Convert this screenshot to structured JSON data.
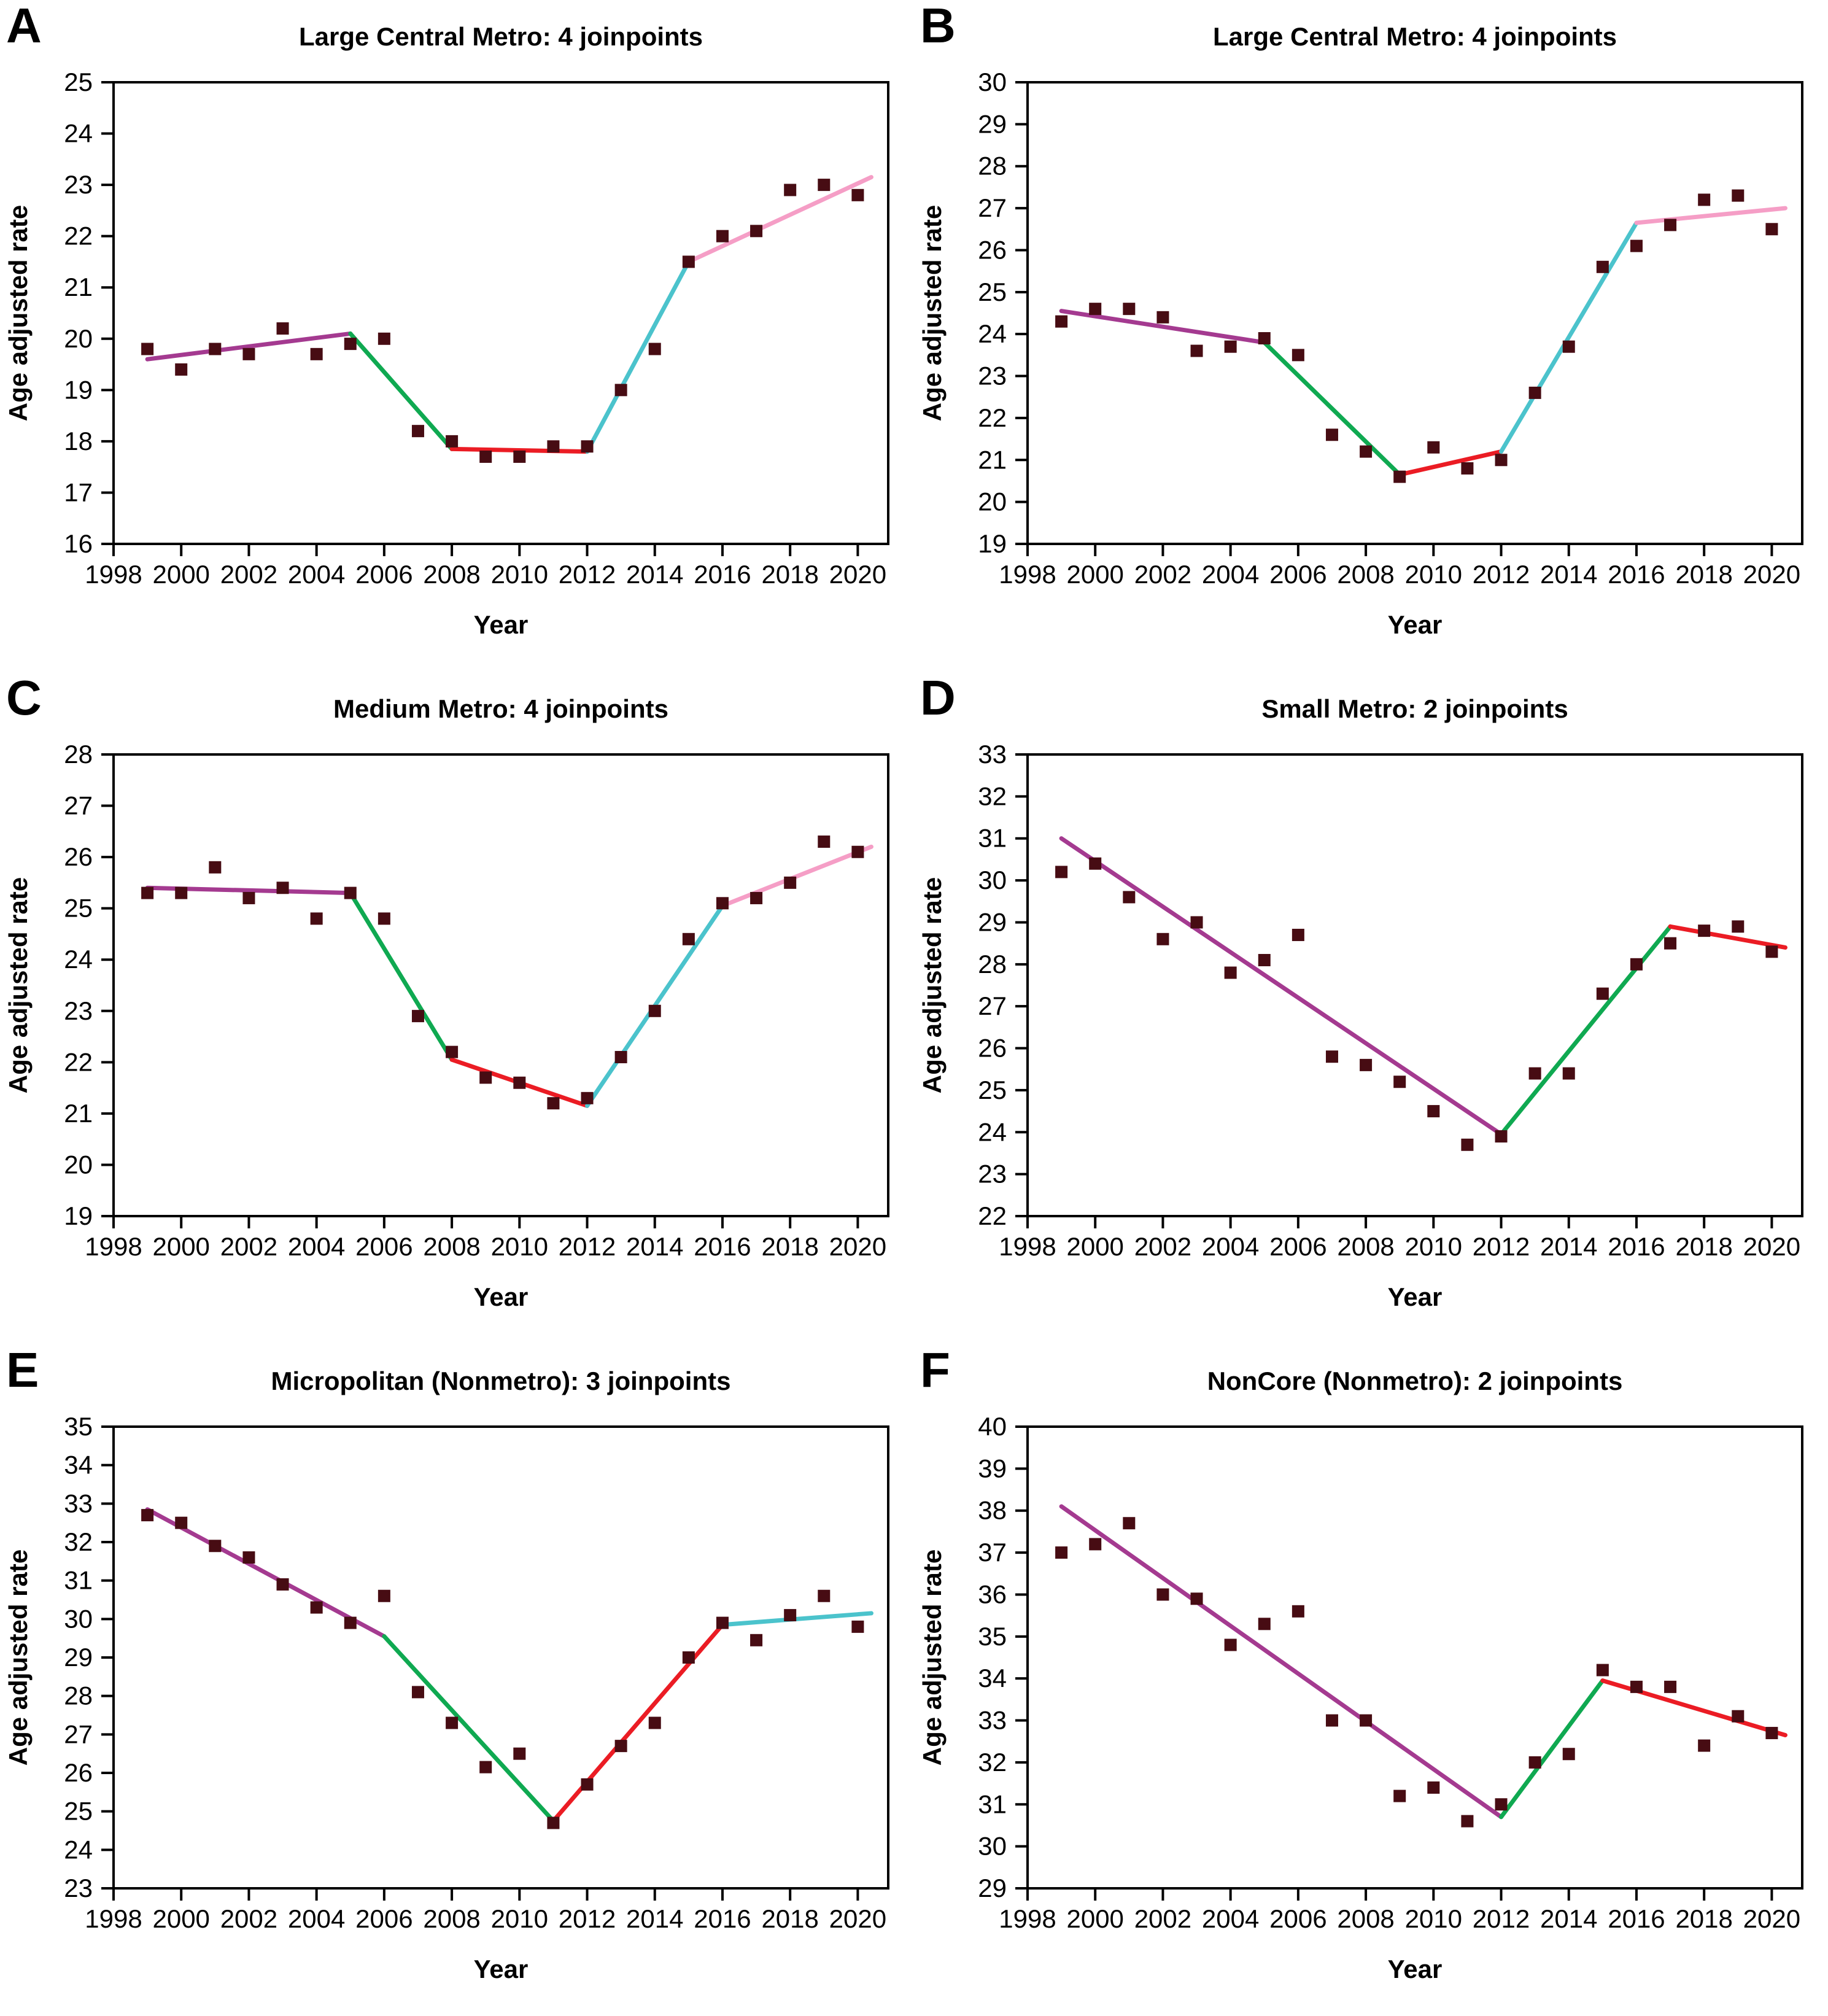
{
  "figure": {
    "background": "#ffffff",
    "axis_color": "#000000",
    "point_color": "#470c13",
    "marker": "square",
    "segment_palette": {
      "purple": "#a43a90",
      "green": "#0fa951",
      "red": "#eb1c24",
      "cyan": "#4bc3cc",
      "pink": "#f59ec6"
    }
  },
  "chart_data": [
    {
      "type": "scatter",
      "panel_label": "A",
      "title": "Large Central Metro: 4 joinpoints",
      "xlabel": "Year",
      "ylabel": "Age adjusted rate",
      "xlim": [
        1998,
        2020.9
      ],
      "ylim": [
        16,
        25
      ],
      "xticks": [
        1998,
        2000,
        2002,
        2004,
        2006,
        2008,
        2010,
        2012,
        2014,
        2016,
        2018,
        2020
      ],
      "ytick_step": 1,
      "grid": false,
      "years": [
        1999,
        2000,
        2001,
        2002,
        2003,
        2004,
        2005,
        2006,
        2007,
        2008,
        2009,
        2010,
        2011,
        2012,
        2013,
        2014,
        2015,
        2016,
        2017,
        2018,
        2019,
        2020
      ],
      "values": [
        19.8,
        19.4,
        19.8,
        19.7,
        20.2,
        19.7,
        19.9,
        20.0,
        18.2,
        18.0,
        17.7,
        17.7,
        17.9,
        17.9,
        19.0,
        19.8,
        21.5,
        22.0,
        22.1,
        22.9,
        23.0,
        22.8
      ],
      "trend_segments": [
        {
          "color": "purple",
          "x1": 1999,
          "y1": 19.6,
          "x2": 2005,
          "y2": 20.1
        },
        {
          "color": "green",
          "x1": 2005,
          "y1": 20.1,
          "x2": 2008,
          "y2": 17.85
        },
        {
          "color": "red",
          "x1": 2008,
          "y1": 17.85,
          "x2": 2012,
          "y2": 17.8
        },
        {
          "color": "cyan",
          "x1": 2012,
          "y1": 17.8,
          "x2": 2015,
          "y2": 21.5
        },
        {
          "color": "pink",
          "x1": 2015,
          "y1": 21.5,
          "x2": 2020.4,
          "y2": 23.15
        }
      ]
    },
    {
      "type": "scatter",
      "panel_label": "B",
      "title": "Large Central Metro: 4 joinpoints",
      "xlabel": "Year",
      "ylabel": "Age adjusted rate",
      "xlim": [
        1998,
        2020.9
      ],
      "ylim": [
        19,
        30
      ],
      "xticks": [
        1998,
        2000,
        2002,
        2004,
        2006,
        2008,
        2010,
        2012,
        2014,
        2016,
        2018,
        2020
      ],
      "ytick_step": 1,
      "grid": false,
      "years": [
        1999,
        2000,
        2001,
        2002,
        2003,
        2004,
        2005,
        2006,
        2007,
        2008,
        2009,
        2010,
        2011,
        2012,
        2013,
        2014,
        2015,
        2016,
        2017,
        2018,
        2019,
        2020
      ],
      "values": [
        24.3,
        24.6,
        24.6,
        24.4,
        23.6,
        23.7,
        23.9,
        23.5,
        21.6,
        21.2,
        20.6,
        21.3,
        20.8,
        21.0,
        22.6,
        23.7,
        25.6,
        26.1,
        26.6,
        27.2,
        27.3,
        26.5
      ],
      "trend_segments": [
        {
          "color": "purple",
          "x1": 1999,
          "y1": 24.55,
          "x2": 2005,
          "y2": 23.8
        },
        {
          "color": "green",
          "x1": 2005,
          "y1": 23.8,
          "x2": 2009,
          "y2": 20.65
        },
        {
          "color": "red",
          "x1": 2009,
          "y1": 20.65,
          "x2": 2012,
          "y2": 21.2
        },
        {
          "color": "cyan",
          "x1": 2012,
          "y1": 21.2,
          "x2": 2016,
          "y2": 26.65
        },
        {
          "color": "pink",
          "x1": 2016,
          "y1": 26.65,
          "x2": 2020.4,
          "y2": 27.0
        }
      ]
    },
    {
      "type": "scatter",
      "panel_label": "C",
      "title": "Medium Metro: 4 joinpoints",
      "xlabel": "Year",
      "ylabel": "Age adjusted rate",
      "xlim": [
        1998,
        2020.9
      ],
      "ylim": [
        19,
        28
      ],
      "xticks": [
        1998,
        2000,
        2002,
        2004,
        2006,
        2008,
        2010,
        2012,
        2014,
        2016,
        2018,
        2020
      ],
      "ytick_step": 1,
      "grid": false,
      "years": [
        1999,
        2000,
        2001,
        2002,
        2003,
        2004,
        2005,
        2006,
        2007,
        2008,
        2009,
        2010,
        2011,
        2012,
        2013,
        2014,
        2015,
        2016,
        2017,
        2018,
        2019,
        2020
      ],
      "values": [
        25.3,
        25.3,
        25.8,
        25.2,
        25.4,
        24.8,
        25.3,
        24.8,
        22.9,
        22.2,
        21.7,
        21.6,
        21.2,
        21.3,
        22.1,
        23.0,
        24.4,
        25.1,
        25.2,
        25.5,
        26.3,
        26.1
      ],
      "trend_segments": [
        {
          "color": "purple",
          "x1": 1999,
          "y1": 25.4,
          "x2": 2005,
          "y2": 25.3
        },
        {
          "color": "green",
          "x1": 2005,
          "y1": 25.3,
          "x2": 2008,
          "y2": 22.05
        },
        {
          "color": "red",
          "x1": 2008,
          "y1": 22.05,
          "x2": 2012,
          "y2": 21.15
        },
        {
          "color": "cyan",
          "x1": 2012,
          "y1": 21.15,
          "x2": 2016,
          "y2": 25.05
        },
        {
          "color": "pink",
          "x1": 2016,
          "y1": 25.05,
          "x2": 2020.4,
          "y2": 26.2
        }
      ]
    },
    {
      "type": "scatter",
      "panel_label": "D",
      "title": "Small Metro: 2 joinpoints",
      "xlabel": "Year",
      "ylabel": "Age adjusted rate",
      "xlim": [
        1998,
        2020.9
      ],
      "ylim": [
        22,
        33
      ],
      "xticks": [
        1998,
        2000,
        2002,
        2004,
        2006,
        2008,
        2010,
        2012,
        2014,
        2016,
        2018,
        2020
      ],
      "ytick_step": 1,
      "grid": false,
      "years": [
        1999,
        2000,
        2001,
        2002,
        2003,
        2004,
        2005,
        2006,
        2007,
        2008,
        2009,
        2010,
        2011,
        2012,
        2013,
        2014,
        2015,
        2016,
        2017,
        2018,
        2019,
        2020
      ],
      "values": [
        30.2,
        30.4,
        29.6,
        28.6,
        29.0,
        27.8,
        28.1,
        28.7,
        25.8,
        25.6,
        25.2,
        24.5,
        23.7,
        23.9,
        25.4,
        25.4,
        27.3,
        28.0,
        28.5,
        28.8,
        28.9,
        28.3
      ],
      "trend_segments": [
        {
          "color": "purple",
          "x1": 1999,
          "y1": 31.0,
          "x2": 2012,
          "y2": 23.95
        },
        {
          "color": "green",
          "x1": 2012,
          "y1": 23.95,
          "x2": 2017,
          "y2": 28.9
        },
        {
          "color": "red",
          "x1": 2017,
          "y1": 28.9,
          "x2": 2020.4,
          "y2": 28.4
        }
      ]
    },
    {
      "type": "scatter",
      "panel_label": "E",
      "title": "Micropolitan (Nonmetro): 3 joinpoints",
      "xlabel": "Year",
      "ylabel": "Age adjusted rate",
      "xlim": [
        1998,
        2020.9
      ],
      "ylim": [
        23,
        35
      ],
      "xticks": [
        1998,
        2000,
        2002,
        2004,
        2006,
        2008,
        2010,
        2012,
        2014,
        2016,
        2018,
        2020
      ],
      "ytick_step": 1,
      "grid": false,
      "years": [
        1999,
        2000,
        2001,
        2002,
        2003,
        2004,
        2005,
        2006,
        2007,
        2008,
        2009,
        2010,
        2011,
        2012,
        2013,
        2014,
        2015,
        2016,
        2017,
        2018,
        2019,
        2020
      ],
      "values": [
        32.7,
        32.5,
        31.9,
        31.6,
        30.9,
        30.3,
        29.9,
        30.6,
        28.1,
        27.3,
        26.15,
        26.5,
        24.7,
        25.7,
        26.7,
        27.3,
        29.0,
        29.9,
        29.45,
        30.1,
        30.6,
        29.8
      ],
      "trend_segments": [
        {
          "color": "purple",
          "x1": 1999,
          "y1": 32.85,
          "x2": 2006,
          "y2": 29.55
        },
        {
          "color": "green",
          "x1": 2006,
          "y1": 29.55,
          "x2": 2011,
          "y2": 24.75
        },
        {
          "color": "red",
          "x1": 2011,
          "y1": 24.75,
          "x2": 2016,
          "y2": 29.85
        },
        {
          "color": "cyan",
          "x1": 2016,
          "y1": 29.85,
          "x2": 2020.4,
          "y2": 30.15
        }
      ]
    },
    {
      "type": "scatter",
      "panel_label": "F",
      "title": "NonCore (Nonmetro): 2 joinpoints",
      "xlabel": "Year",
      "ylabel": "Age adjusted rate",
      "xlim": [
        1998,
        2020.9
      ],
      "ylim": [
        29,
        40
      ],
      "xticks": [
        1998,
        2000,
        2002,
        2004,
        2006,
        2008,
        2010,
        2012,
        2014,
        2016,
        2018,
        2020
      ],
      "ytick_step": 1,
      "grid": false,
      "years": [
        1999,
        2000,
        2001,
        2002,
        2003,
        2004,
        2005,
        2006,
        2007,
        2008,
        2009,
        2010,
        2011,
        2012,
        2013,
        2014,
        2015,
        2016,
        2017,
        2018,
        2019,
        2020
      ],
      "values": [
        37.0,
        37.2,
        37.7,
        36.0,
        35.9,
        34.8,
        35.3,
        35.6,
        33.0,
        33.0,
        31.2,
        31.4,
        30.6,
        31.0,
        32.0,
        32.2,
        34.2,
        33.8,
        33.8,
        32.4,
        33.1,
        32.7
      ],
      "trend_segments": [
        {
          "color": "purple",
          "x1": 1999,
          "y1": 38.1,
          "x2": 2012,
          "y2": 30.7
        },
        {
          "color": "green",
          "x1": 2012,
          "y1": 30.7,
          "x2": 2015,
          "y2": 33.95
        },
        {
          "color": "red",
          "x1": 2015,
          "y1": 33.95,
          "x2": 2020.4,
          "y2": 32.65
        }
      ]
    }
  ]
}
